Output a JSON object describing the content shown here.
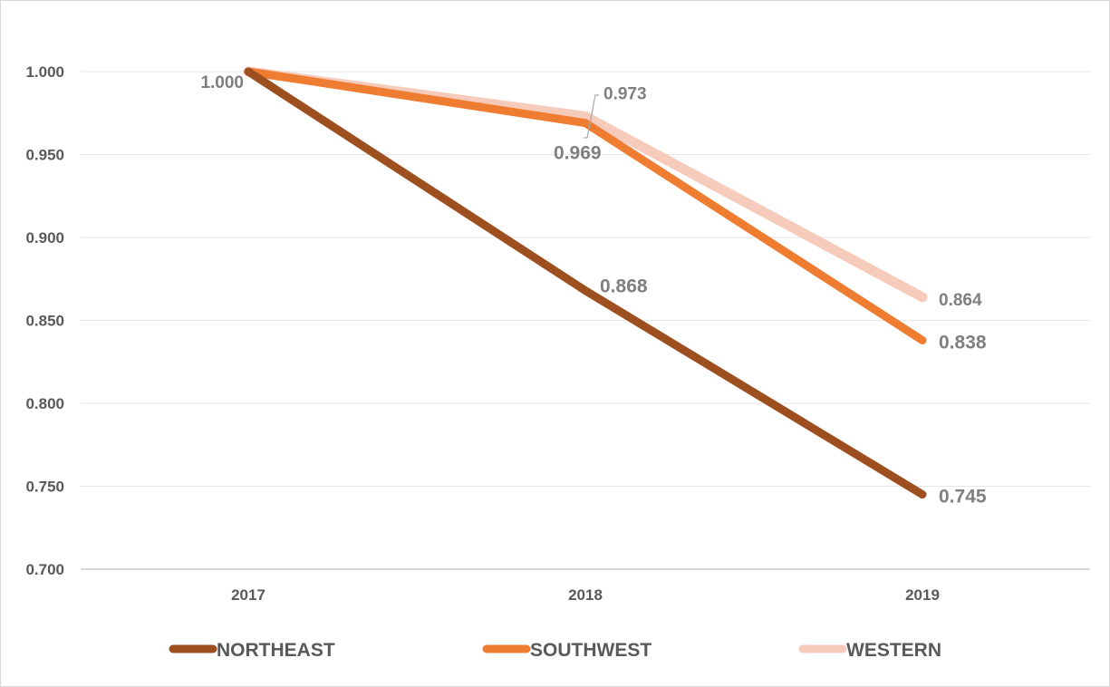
{
  "chart_data": {
    "type": "line",
    "categories": [
      "2017",
      "2018",
      "2019"
    ],
    "y_ticks": [
      "0.700",
      "0.750",
      "0.800",
      "0.850",
      "0.900",
      "0.950",
      "1.000"
    ],
    "ylim": [
      0.7,
      1.0
    ],
    "grid": true,
    "legend_position": "bottom",
    "series": [
      {
        "name": "NORTHEAST",
        "color": "#9e4f1f",
        "values": [
          1.0,
          0.868,
          0.745
        ],
        "labels": [
          "1.000",
          "0.868",
          "0.745"
        ]
      },
      {
        "name": "SOUTHWEST",
        "color": "#ee7d31",
        "values": [
          1.0,
          0.969,
          0.838
        ],
        "labels": [
          "",
          "0.969",
          "0.838"
        ]
      },
      {
        "name": "WESTERN",
        "color": "#f7cbbc",
        "values": [
          1.0,
          0.973,
          0.864
        ],
        "labels": [
          "",
          "0.973",
          "0.864"
        ]
      }
    ]
  }
}
